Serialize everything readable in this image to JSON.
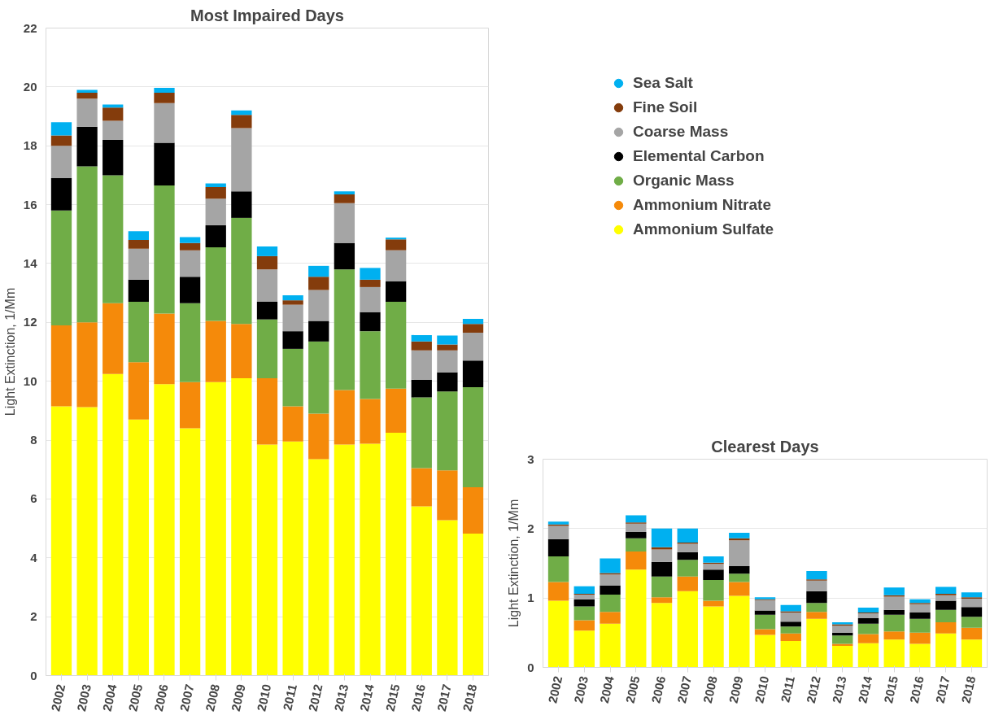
{
  "chart_data": [
    {
      "type": "bar",
      "stacked": true,
      "title": "Most Impaired Days",
      "ylabel": "Light Extinction, 1/Mm",
      "categories": [
        "2002",
        "2003",
        "2004",
        "2005",
        "2006",
        "2007",
        "2008",
        "2009",
        "2010",
        "2011",
        "2012",
        "2013",
        "2014",
        "2015",
        "2016",
        "2017",
        "2018"
      ],
      "ylim": [
        0,
        22
      ],
      "yticks": [
        0,
        2,
        4,
        6,
        8,
        10,
        12,
        14,
        16,
        18,
        20,
        22
      ],
      "grid": "y",
      "legend": "right",
      "series": [
        {
          "name": "Ammonium Sulfate",
          "color": "#ffff00",
          "values": [
            9.15,
            9.12,
            10.25,
            8.7,
            9.9,
            8.4,
            9.97,
            10.1,
            7.85,
            7.95,
            7.35,
            7.85,
            7.88,
            8.25,
            5.75,
            5.28,
            4.82
          ]
        },
        {
          "name": "Ammonium Nitrate",
          "color": "#f58a0a",
          "values": [
            2.75,
            2.88,
            2.4,
            1.95,
            2.4,
            1.57,
            2.08,
            1.85,
            2.25,
            1.2,
            1.55,
            1.85,
            1.52,
            1.5,
            1.3,
            1.69,
            1.58
          ]
        },
        {
          "name": "Organic Mass",
          "color": "#70ad47",
          "values": [
            3.9,
            5.3,
            4.35,
            2.05,
            4.35,
            2.68,
            2.5,
            3.6,
            2.0,
            1.95,
            2.45,
            4.1,
            2.3,
            2.95,
            2.4,
            2.68,
            3.4
          ]
        },
        {
          "name": "Elemental Carbon",
          "color": "#000000",
          "values": [
            1.1,
            1.35,
            1.2,
            0.75,
            1.45,
            0.9,
            0.75,
            0.9,
            0.6,
            0.6,
            0.7,
            0.9,
            0.65,
            0.7,
            0.6,
            0.65,
            0.9
          ]
        },
        {
          "name": "Coarse Mass",
          "color": "#a5a5a5",
          "values": [
            1.1,
            0.95,
            0.65,
            1.05,
            1.35,
            0.9,
            0.9,
            2.15,
            1.1,
            0.9,
            1.05,
            1.35,
            0.85,
            1.05,
            1.0,
            0.75,
            0.95
          ]
        },
        {
          "name": "Fine Soil",
          "color": "#843c0c",
          "values": [
            0.35,
            0.2,
            0.45,
            0.3,
            0.35,
            0.25,
            0.4,
            0.45,
            0.45,
            0.15,
            0.45,
            0.3,
            0.25,
            0.37,
            0.3,
            0.2,
            0.3
          ]
        },
        {
          "name": "Sea Salt",
          "color": "#00b0f0",
          "values": [
            0.45,
            0.1,
            0.1,
            0.3,
            0.17,
            0.2,
            0.12,
            0.15,
            0.33,
            0.17,
            0.37,
            0.1,
            0.4,
            0.06,
            0.22,
            0.3,
            0.17
          ]
        }
      ]
    },
    {
      "type": "bar",
      "stacked": true,
      "title": "Clearest Days",
      "ylabel": "Light Extinction, 1/Mm",
      "categories": [
        "2002",
        "2003",
        "2004",
        "2005",
        "2006",
        "2007",
        "2008",
        "2009",
        "2010",
        "2011",
        "2012",
        "2013",
        "2014",
        "2015",
        "2016",
        "2017",
        "2018"
      ],
      "ylim": [
        0,
        3
      ],
      "yticks": [
        0,
        1,
        2,
        3
      ],
      "grid": "y",
      "series": [
        {
          "color": "#ffff00",
          "values": [
            0.96,
            0.53,
            0.63,
            1.41,
            0.93,
            1.1,
            0.88,
            1.03,
            0.47,
            0.38,
            0.7,
            0.31,
            0.35,
            0.4,
            0.34,
            0.49,
            0.4
          ]
        },
        {
          "color": "#f58a0a",
          "values": [
            0.27,
            0.15,
            0.17,
            0.26,
            0.08,
            0.21,
            0.08,
            0.2,
            0.08,
            0.11,
            0.1,
            0.03,
            0.13,
            0.12,
            0.16,
            0.16,
            0.17
          ]
        },
        {
          "color": "#70ad47",
          "values": [
            0.37,
            0.2,
            0.25,
            0.19,
            0.3,
            0.24,
            0.3,
            0.12,
            0.21,
            0.1,
            0.13,
            0.12,
            0.15,
            0.24,
            0.2,
            0.18,
            0.16
          ]
        },
        {
          "color": "#000000",
          "values": [
            0.25,
            0.1,
            0.13,
            0.09,
            0.21,
            0.11,
            0.15,
            0.11,
            0.06,
            0.07,
            0.17,
            0.04,
            0.08,
            0.07,
            0.09,
            0.13,
            0.14
          ]
        },
        {
          "color": "#a5a5a5",
          "values": [
            0.19,
            0.07,
            0.16,
            0.12,
            0.18,
            0.12,
            0.08,
            0.37,
            0.15,
            0.13,
            0.15,
            0.1,
            0.07,
            0.19,
            0.12,
            0.08,
            0.12
          ]
        },
        {
          "color": "#843c0c",
          "values": [
            0.02,
            0.01,
            0.02,
            0.02,
            0.03,
            0.02,
            0.02,
            0.03,
            0.01,
            0.02,
            0.02,
            0.02,
            0.01,
            0.02,
            0.02,
            0.02,
            0.02
          ]
        },
        {
          "color": "#00b0f0",
          "values": [
            0.04,
            0.11,
            0.21,
            0.1,
            0.27,
            0.2,
            0.09,
            0.08,
            0.03,
            0.09,
            0.12,
            0.03,
            0.07,
            0.11,
            0.05,
            0.1,
            0.07
          ]
        }
      ]
    }
  ]
}
